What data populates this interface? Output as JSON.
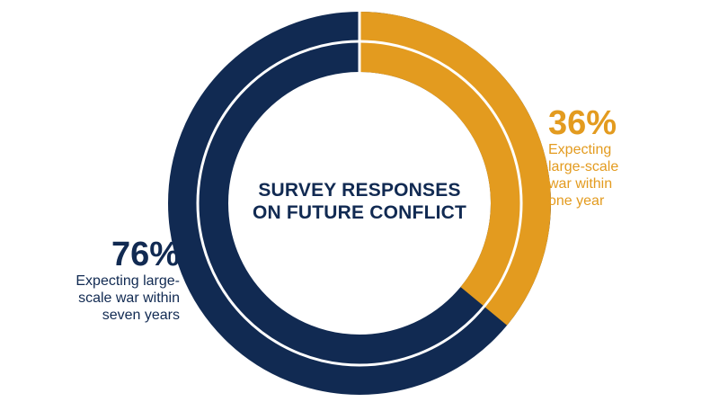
{
  "chart_data": {
    "type": "pie",
    "title": [
      "SURVEY RESPONSES",
      "ON FUTURE CONFLICT"
    ],
    "series": [
      {
        "value": 76,
        "value_label": "76%",
        "label_lines": [
          "Expecting large-",
          "scale war within",
          "seven years"
        ],
        "color": "#112a52"
      },
      {
        "value": 36,
        "value_label": "36%",
        "label_lines": [
          "Expecting",
          "large-scale",
          "war within",
          "one year"
        ],
        "color": "#e39b1f"
      }
    ],
    "background_ring_color": "#112a52",
    "separator_color": "#ffffff"
  }
}
